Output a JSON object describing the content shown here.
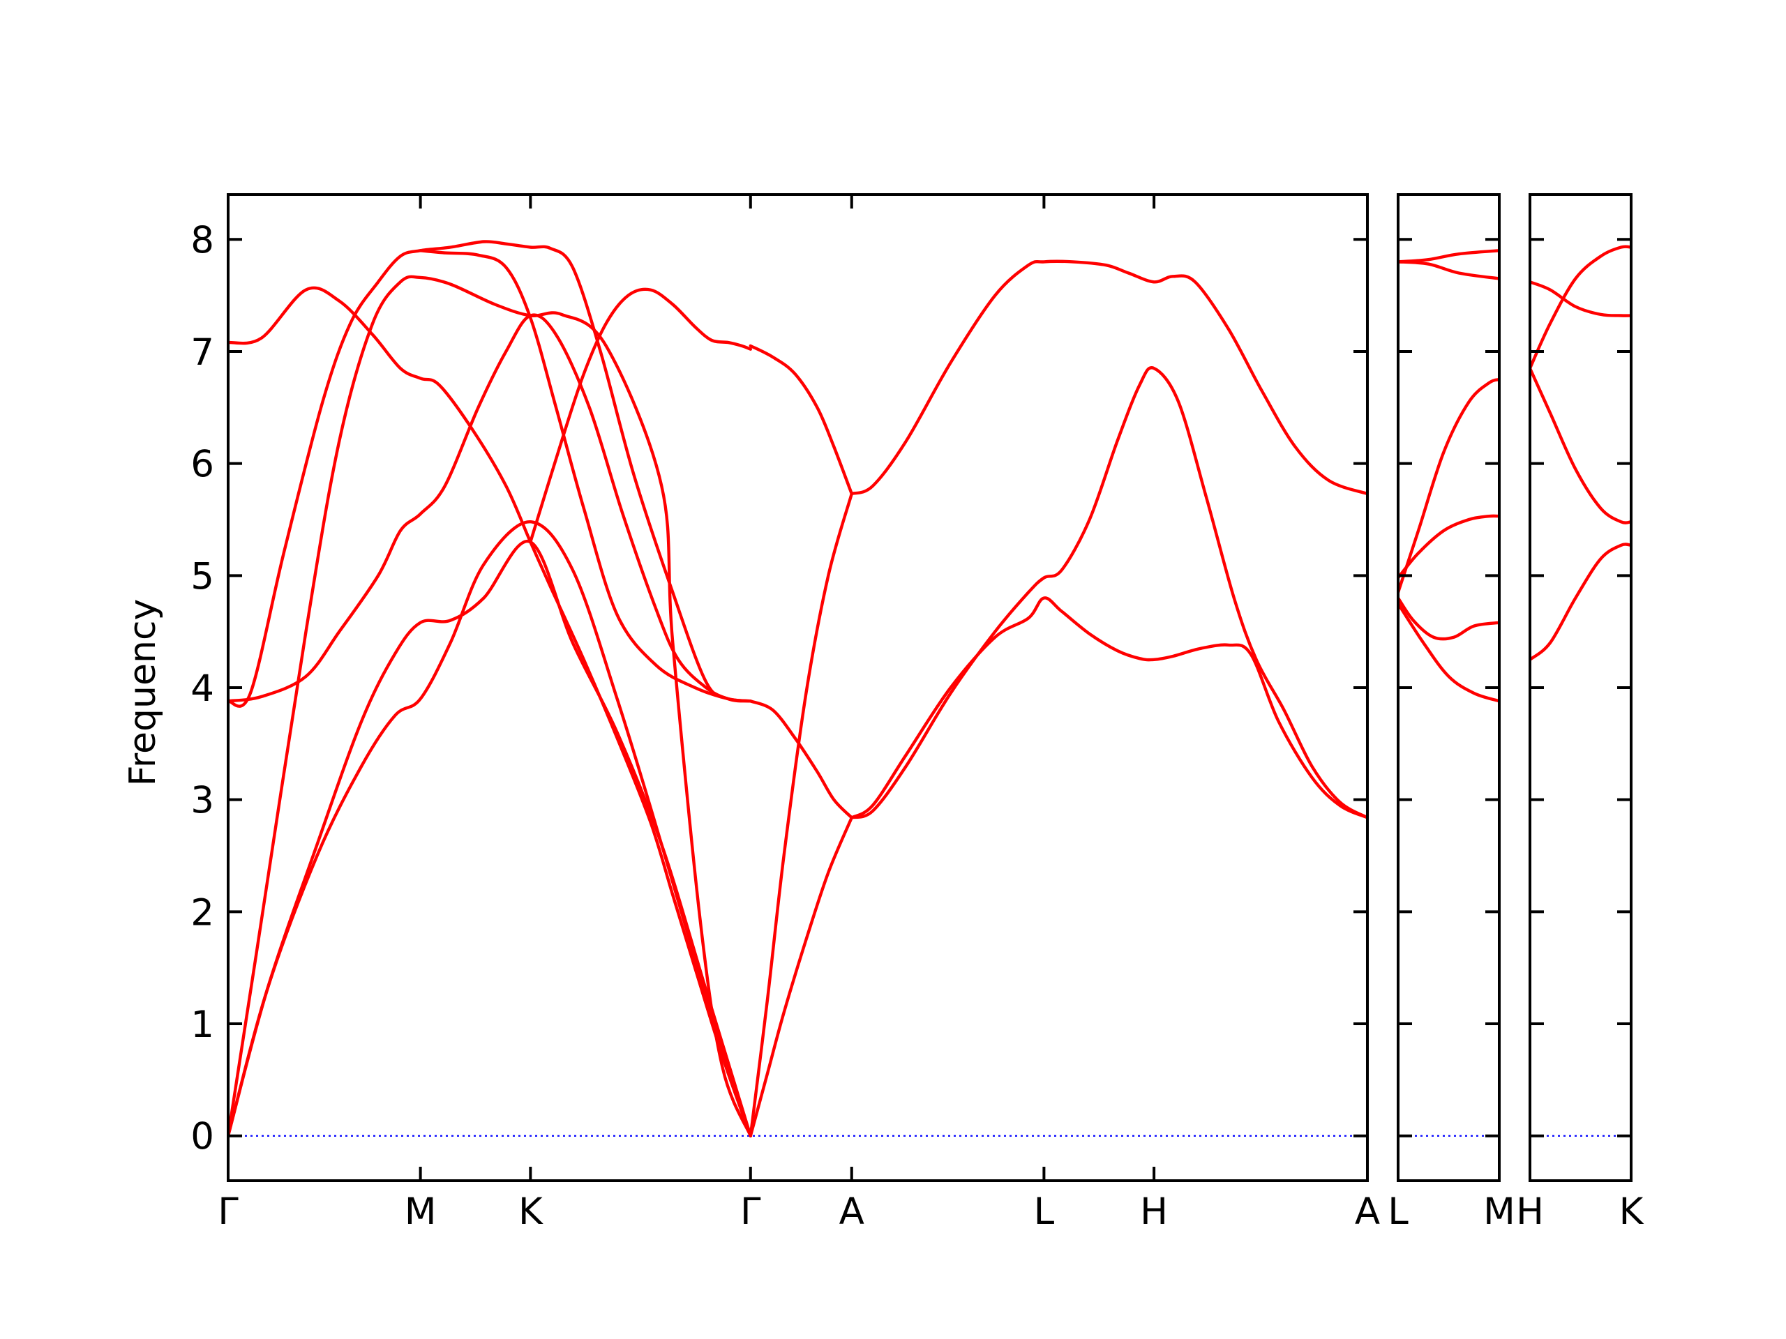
{
  "chart_data": {
    "type": "line",
    "ylabel": "Frequency",
    "ylim": [
      -0.4,
      8.4
    ],
    "yticks": [
      0,
      1,
      2,
      3,
      4,
      5,
      6,
      7,
      8
    ],
    "colors": {
      "bands": "#ff0000",
      "zero_line": "#0000ff",
      "axes": "#000000"
    },
    "grid": false,
    "panels": [
      {
        "id": "main",
        "xlim": [
          0,
          10.25
        ],
        "xticks": [
          {
            "x": 0.0,
            "label": "Γ"
          },
          {
            "x": 1.73,
            "label": "M"
          },
          {
            "x": 2.72,
            "label": "K"
          },
          {
            "x": 4.7,
            "label": "Γ"
          },
          {
            "x": 5.61,
            "label": "A"
          },
          {
            "x": 7.34,
            "label": "L"
          },
          {
            "x": 8.33,
            "label": "H"
          },
          {
            "x": 10.25,
            "label": "A"
          }
        ],
        "bands": [
          {
            "x": [
              0,
              0.35,
              0.8,
              1.2,
              1.5,
              1.73,
              2.0,
              2.3,
              2.72,
              3.1,
              3.5,
              3.9,
              4.3,
              4.7
            ],
            "y": [
              0,
              1.3,
              2.5,
              3.3,
              3.75,
              3.9,
              4.4,
              5.1,
              5.48,
              5.05,
              3.9,
              2.6,
              1.25,
              0
            ]
          },
          {
            "x": [
              0,
              0.35,
              0.8,
              1.2,
              1.5,
              1.73,
              2.0,
              2.3,
              2.72,
              3.1,
              3.5,
              3.9,
              4.3,
              4.7
            ],
            "y": [
              0,
              1.3,
              2.6,
              3.7,
              4.3,
              4.58,
              4.6,
              4.8,
              5.3,
              4.4,
              3.6,
              2.6,
              1.3,
              0
            ]
          },
          {
            "x": [
              0,
              0.25,
              0.7,
              1.0,
              1.3,
              1.55,
              1.73,
              2.0,
              2.4,
              2.72,
              3.0,
              3.4,
              3.9,
              4.0,
              4.25,
              4.45,
              4.7
            ],
            "y": [
              0,
              1.6,
              4.5,
              6.2,
              7.25,
              7.62,
              7.66,
              7.6,
              7.42,
              7.32,
              7.33,
              7.05,
              5.8,
              4.4,
              1.9,
              0.6,
              0
            ]
          },
          {
            "x": [
              0,
              0.2,
              0.5,
              0.85,
              1.1,
              1.35,
              1.55,
              1.73,
              2.0,
              2.3,
              2.5,
              2.72,
              2.9,
              3.1,
              3.35,
              3.65,
              4.0,
              4.3,
              4.5,
              4.7
            ],
            "y": [
              3.88,
              3.95,
              5.2,
              6.55,
              7.25,
              7.62,
              7.85,
              7.9,
              7.93,
              7.98,
              7.96,
              7.93,
              7.92,
              7.75,
              7.0,
              5.9,
              4.85,
              4.05,
              3.9,
              3.88
            ]
          },
          {
            "x": [
              0,
              0.3,
              0.7,
              1.0,
              1.3,
              1.55,
              1.73,
              1.9,
              2.2,
              2.5,
              2.72,
              2.9,
              3.2,
              3.5,
              3.8,
              4.0,
              4.2,
              4.45,
              4.7
            ],
            "y": [
              7.08,
              7.12,
              7.55,
              7.45,
              7.15,
              6.85,
              6.76,
              6.7,
              6.3,
              5.8,
              5.3,
              4.9,
              4.25,
              3.55,
              2.8,
              2.15,
              1.5,
              0.7,
              0
            ]
          },
          {
            "x": [
              0,
              0.3,
              0.7,
              1.0,
              1.35,
              1.55,
              1.73,
              1.95,
              2.25,
              2.5,
              2.72,
              2.95,
              3.25,
              3.55,
              3.85,
              4.05,
              4.3,
              4.5,
              4.7
            ],
            "y": [
              3.88,
              3.92,
              4.1,
              4.5,
              5.0,
              5.4,
              5.55,
              5.8,
              6.5,
              7.0,
              7.32,
              7.15,
              6.5,
              5.55,
              4.7,
              4.25,
              4.0,
              3.9,
              3.88
            ]
          },
          {
            "x": [
              1.73,
              1.95,
              2.25,
              2.5,
              2.72,
              2.95,
              3.2,
              3.5,
              3.85,
              4.2,
              4.5,
              4.7
            ],
            "y": [
              7.9,
              7.88,
              7.86,
              7.75,
              7.3,
              6.5,
              5.6,
              4.65,
              4.2,
              4.0,
              3.9,
              3.88
            ]
          },
          {
            "x": [
              4.7,
              4.9,
              5.1,
              5.3,
              5.45,
              5.61
            ],
            "y": [
              3.88,
              3.8,
              3.55,
              3.25,
              3.0,
              2.84
            ]
          },
          {
            "x": [
              4.7,
              4.85,
              5.0,
              5.2,
              5.4,
              5.61
            ],
            "y": [
              0,
              0.55,
              1.1,
              1.75,
              2.35,
              2.84
            ]
          },
          {
            "x": [
              4.7,
              4.85,
              5.0,
              5.2,
              5.4,
              5.61
            ],
            "y": [
              0,
              1.2,
              2.5,
              3.95,
              5.0,
              5.73
            ]
          },
          {
            "x": [
              2.72,
              3.0,
              3.2,
              3.4,
              3.6,
              3.8,
              4.0,
              4.2,
              4.35,
              4.5,
              4.62,
              4.7
            ],
            "y": [
              5.3,
              6.2,
              6.8,
              7.25,
              7.5,
              7.55,
              7.42,
              7.22,
              7.1,
              7.08,
              7.05,
              7.02
            ]
          },
          {
            "x": [
              4.7,
              4.9,
              5.1,
              5.3,
              5.45,
              5.61
            ],
            "y": [
              7.05,
              6.95,
              6.8,
              6.5,
              6.15,
              5.73
            ]
          },
          {
            "x": [
              5.61,
              5.8,
              6.1,
              6.5,
              6.9,
              7.2,
              7.34,
              7.6,
              7.9,
              8.1,
              8.33,
              8.5,
              8.7,
              9.0,
              9.3,
              9.6,
              9.9,
              10.25
            ],
            "y": [
              5.73,
              5.8,
              6.2,
              6.9,
              7.5,
              7.77,
              7.8,
              7.8,
              7.77,
              7.7,
              7.62,
              7.67,
              7.62,
              7.2,
              6.65,
              6.15,
              5.85,
              5.73
            ]
          },
          {
            "x": [
              5.61,
              5.8,
              6.1,
              6.5,
              6.9,
              7.2,
              7.34,
              7.5,
              7.75,
              8.0,
              8.2,
              8.33,
              8.5,
              8.75,
              9.0,
              9.2,
              9.45,
              9.75,
              10.0,
              10.25
            ],
            "y": [
              2.84,
              2.95,
              3.4,
              4.0,
              4.45,
              4.62,
              4.8,
              4.68,
              4.48,
              4.33,
              4.26,
              4.25,
              4.28,
              4.35,
              4.38,
              4.3,
              3.7,
              3.2,
              2.95,
              2.84
            ]
          },
          {
            "x": [
              5.61,
              5.8,
              6.1,
              6.5,
              6.9,
              7.2,
              7.34,
              7.5,
              7.75,
              8.0,
              8.2,
              8.33,
              8.55,
              8.8,
              9.05,
              9.25,
              9.5,
              9.75,
              10.0,
              10.25
            ],
            "y": [
              2.84,
              2.9,
              3.3,
              3.95,
              4.5,
              4.85,
              4.98,
              5.05,
              5.5,
              6.2,
              6.7,
              6.85,
              6.55,
              5.7,
              4.8,
              4.25,
              3.8,
              3.3,
              2.98,
              2.84
            ]
          }
        ]
      },
      {
        "id": "LM",
        "xlim": [
          0,
          1
        ],
        "xticks": [
          {
            "x": 0.0,
            "label": "L"
          },
          {
            "x": 1.0,
            "label": "M"
          }
        ],
        "bands": [
          {
            "x": [
              0,
              0.3,
              0.6,
              1.0
            ],
            "y": [
              7.8,
              7.82,
              7.87,
              7.9
            ]
          },
          {
            "x": [
              0,
              0.3,
              0.6,
              1.0
            ],
            "y": [
              7.8,
              7.78,
              7.7,
              7.65
            ]
          },
          {
            "x": [
              0,
              0.2,
              0.45,
              0.7,
              0.9,
              1.0
            ],
            "y": [
              4.85,
              5.4,
              6.1,
              6.55,
              6.72,
              6.75
            ]
          },
          {
            "x": [
              0,
              0.2,
              0.45,
              0.7,
              0.9,
              1.0
            ],
            "y": [
              4.98,
              5.2,
              5.4,
              5.5,
              5.53,
              5.53
            ]
          },
          {
            "x": [
              0,
              0.15,
              0.35,
              0.55,
              0.75,
              1.0
            ],
            "y": [
              4.8,
              4.6,
              4.45,
              4.45,
              4.55,
              4.58
            ]
          },
          {
            "x": [
              0,
              0.25,
              0.5,
              0.75,
              1.0
            ],
            "y": [
              4.75,
              4.4,
              4.1,
              3.95,
              3.88
            ]
          }
        ]
      },
      {
        "id": "HK",
        "xlim": [
          0,
          1
        ],
        "xticks": [
          {
            "x": 0.0,
            "label": "H"
          },
          {
            "x": 1.0,
            "label": "K"
          }
        ],
        "bands": [
          {
            "x": [
              0,
              0.2,
              0.45,
              0.7,
              0.9,
              1.0
            ],
            "y": [
              7.62,
              7.55,
              7.4,
              7.33,
              7.32,
              7.32
            ]
          },
          {
            "x": [
              0,
              0.2,
              0.45,
              0.7,
              0.9,
              1.0
            ],
            "y": [
              6.85,
              7.25,
              7.65,
              7.85,
              7.93,
              7.93
            ]
          },
          {
            "x": [
              0,
              0.2,
              0.45,
              0.7,
              0.9,
              1.0
            ],
            "y": [
              6.85,
              6.45,
              5.95,
              5.6,
              5.48,
              5.48
            ]
          },
          {
            "x": [
              0,
              0.2,
              0.45,
              0.7,
              0.9,
              1.0
            ],
            "y": [
              4.25,
              4.4,
              4.8,
              5.15,
              5.27,
              5.27
            ]
          }
        ]
      }
    ]
  }
}
